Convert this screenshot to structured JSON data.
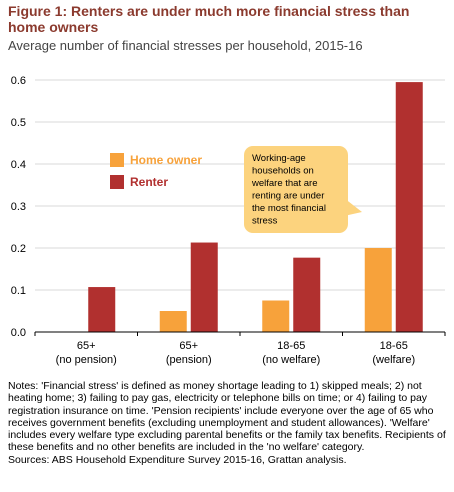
{
  "figure": {
    "title": "Figure 1: Renters are under much more financial stress than home owners",
    "subtitle": "Average number of financial stresses per household, 2015-16"
  },
  "chart_data": {
    "type": "bar",
    "categories": [
      [
        "65+",
        "(no pension)"
      ],
      [
        "65+",
        "(pension)"
      ],
      [
        "18-65",
        "(no welfare)"
      ],
      [
        "18-65",
        "(welfare)"
      ]
    ],
    "series": [
      {
        "name": "Home owner",
        "color": "#f7a23b",
        "values": [
          0.0,
          0.05,
          0.075,
          0.2
        ]
      },
      {
        "name": "Renter",
        "color": "#b1302f",
        "values": [
          0.107,
          0.213,
          0.177,
          0.595
        ]
      }
    ],
    "ylim": [
      0,
      0.6
    ],
    "yticks": [
      "0.0",
      "0.1",
      "0.2",
      "0.3",
      "0.4",
      "0.5",
      "0.6"
    ],
    "grid": true,
    "legend_position": "top-left",
    "annotation": {
      "text": [
        "Working-age",
        "households on",
        "welfare that are",
        "renting are under",
        "the most financial",
        "stress"
      ],
      "fill": "#fcd37e"
    }
  },
  "notes": [
    "Notes: 'Financial stress' is defined as money shortage leading to 1) skipped meals; 2) not heating home; 3) failing to pay gas, electricity or telephone bills on time; or 4) failing to pay registration insurance on time. 'Pension recipients' include everyone over the age of 65 who receives government benefits (excluding unemployment and student allowances). 'Welfare' includes every welfare type excluding parental benefits or the family tax benefits. Recipients of these benefits and no other benefits are included in the 'no welfare' category.",
    "Sources: ABS Household Expenditure Survey 2015-16, Grattan analysis."
  ]
}
